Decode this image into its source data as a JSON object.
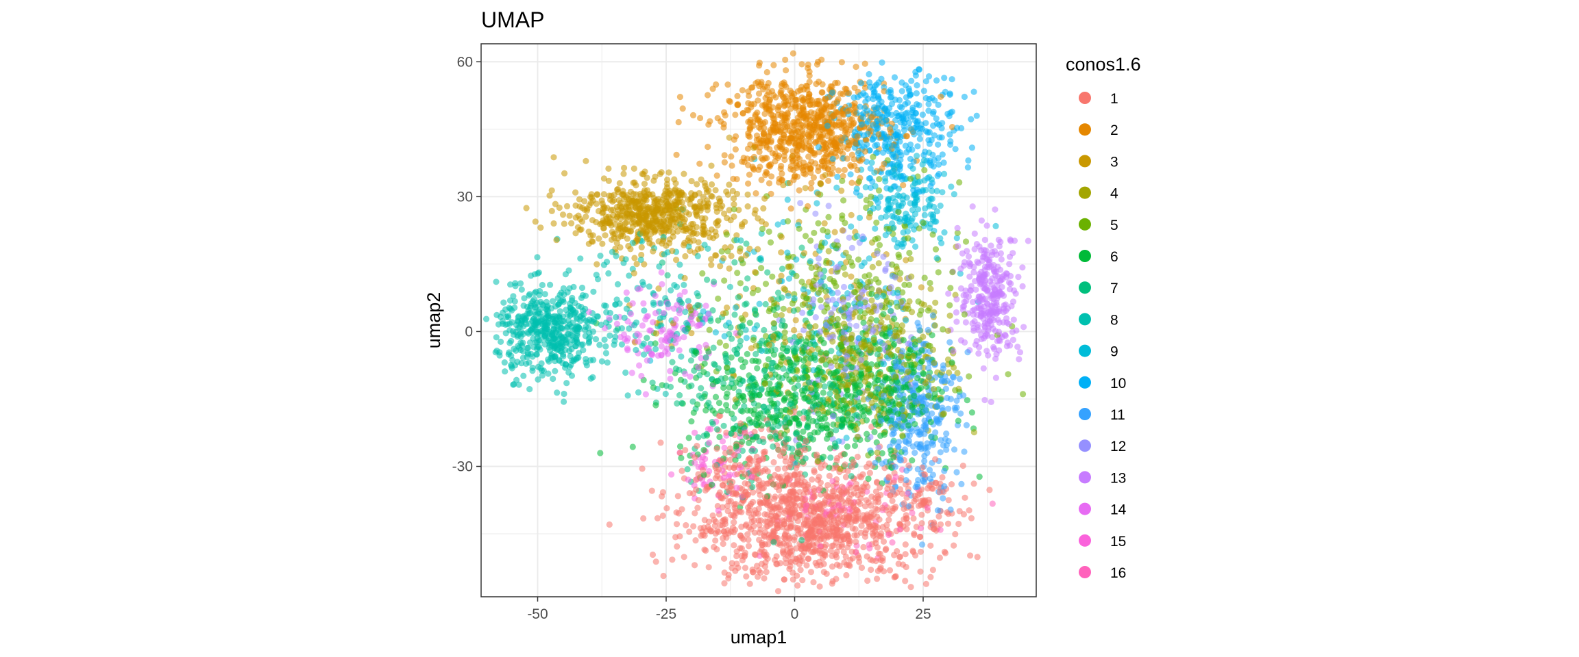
{
  "chart_data": {
    "type": "scatter",
    "title": "UMAP",
    "xlabel": "umap1",
    "ylabel": "umap2",
    "xlim": [
      -61,
      47
    ],
    "ylim": [
      -59,
      64
    ],
    "xticks": [
      -50,
      -25,
      0,
      25
    ],
    "yticks": [
      -30,
      0,
      30,
      60
    ],
    "grid": true,
    "legend": {
      "title": "conos1.6",
      "position": "right",
      "entries": [
        "1",
        "2",
        "3",
        "4",
        "5",
        "6",
        "7",
        "8",
        "9",
        "10",
        "11",
        "12",
        "13",
        "14",
        "15",
        "16"
      ]
    },
    "series": [
      {
        "name": "1",
        "color": "#F8766D",
        "clusters": [
          {
            "cx": 3,
            "cy": -42,
            "sx": 12,
            "sy": 7,
            "n": 1100
          },
          {
            "cx": -8,
            "cy": -30,
            "sx": 6,
            "sy": 6,
            "n": 120
          },
          {
            "cx": 26,
            "cy": -38,
            "sx": 2,
            "sy": 3,
            "n": 40
          }
        ]
      },
      {
        "name": "2",
        "color": "#E58700",
        "clusters": [
          {
            "cx": 2,
            "cy": 45,
            "sx": 8,
            "sy": 6,
            "n": 750
          }
        ]
      },
      {
        "name": "3",
        "color": "#C99800",
        "clusters": [
          {
            "cx": -28,
            "cy": 26,
            "sx": 8,
            "sy": 4,
            "n": 600
          },
          {
            "cx": -5,
            "cy": 10,
            "sx": 12,
            "sy": 12,
            "n": 120
          }
        ]
      },
      {
        "name": "4",
        "color": "#A3A500",
        "clusters": [
          {
            "cx": 16,
            "cy": -5,
            "sx": 8,
            "sy": 10,
            "n": 300
          }
        ]
      },
      {
        "name": "5",
        "color": "#6BB100",
        "clusters": [
          {
            "cx": 8,
            "cy": 5,
            "sx": 12,
            "sy": 14,
            "n": 300
          }
        ]
      },
      {
        "name": "6",
        "color": "#00BA38",
        "clusters": [
          {
            "cx": 2,
            "cy": -15,
            "sx": 12,
            "sy": 8,
            "n": 500
          },
          {
            "cx": 18,
            "cy": -10,
            "sx": 5,
            "sy": 8,
            "n": 150
          }
        ]
      },
      {
        "name": "7",
        "color": "#00BF7D",
        "clusters": [
          {
            "cx": -5,
            "cy": -10,
            "sx": 10,
            "sy": 12,
            "n": 350
          }
        ]
      },
      {
        "name": "8",
        "color": "#00C0AF",
        "clusters": [
          {
            "cx": -48,
            "cy": 0,
            "sx": 5,
            "sy": 5,
            "n": 450
          },
          {
            "cx": -30,
            "cy": 5,
            "sx": 10,
            "sy": 8,
            "n": 150
          }
        ]
      },
      {
        "name": "9",
        "color": "#00BCD8",
        "clusters": [
          {
            "cx": 22,
            "cy": 28,
            "sx": 4,
            "sy": 5,
            "n": 150
          },
          {
            "cx": 5,
            "cy": 10,
            "sx": 12,
            "sy": 14,
            "n": 100
          }
        ]
      },
      {
        "name": "10",
        "color": "#00B0F6",
        "clusters": [
          {
            "cx": 20,
            "cy": 45,
            "sx": 6,
            "sy": 6,
            "n": 350
          }
        ]
      },
      {
        "name": "11",
        "color": "#35A2FF",
        "clusters": [
          {
            "cx": 24,
            "cy": -18,
            "sx": 4,
            "sy": 10,
            "n": 300
          }
        ]
      },
      {
        "name": "12",
        "color": "#9590FF",
        "clusters": [
          {
            "cx": 10,
            "cy": 0,
            "sx": 6,
            "sy": 10,
            "n": 150
          }
        ]
      },
      {
        "name": "13",
        "color": "#C77CFF",
        "clusters": [
          {
            "cx": 38,
            "cy": 8,
            "sx": 3,
            "sy": 7,
            "n": 300
          }
        ]
      },
      {
        "name": "14",
        "color": "#E76BF3",
        "clusters": [
          {
            "cx": -25,
            "cy": 0,
            "sx": 5,
            "sy": 5,
            "n": 120
          }
        ]
      },
      {
        "name": "15",
        "color": "#FA62DB",
        "clusters": [
          {
            "cx": -15,
            "cy": -30,
            "sx": 4,
            "sy": 4,
            "n": 60
          }
        ]
      },
      {
        "name": "16",
        "color": "#FF62BC",
        "clusters": [
          {
            "cx": 10,
            "cy": -40,
            "sx": 8,
            "sy": 5,
            "n": 60
          }
        ]
      }
    ]
  }
}
